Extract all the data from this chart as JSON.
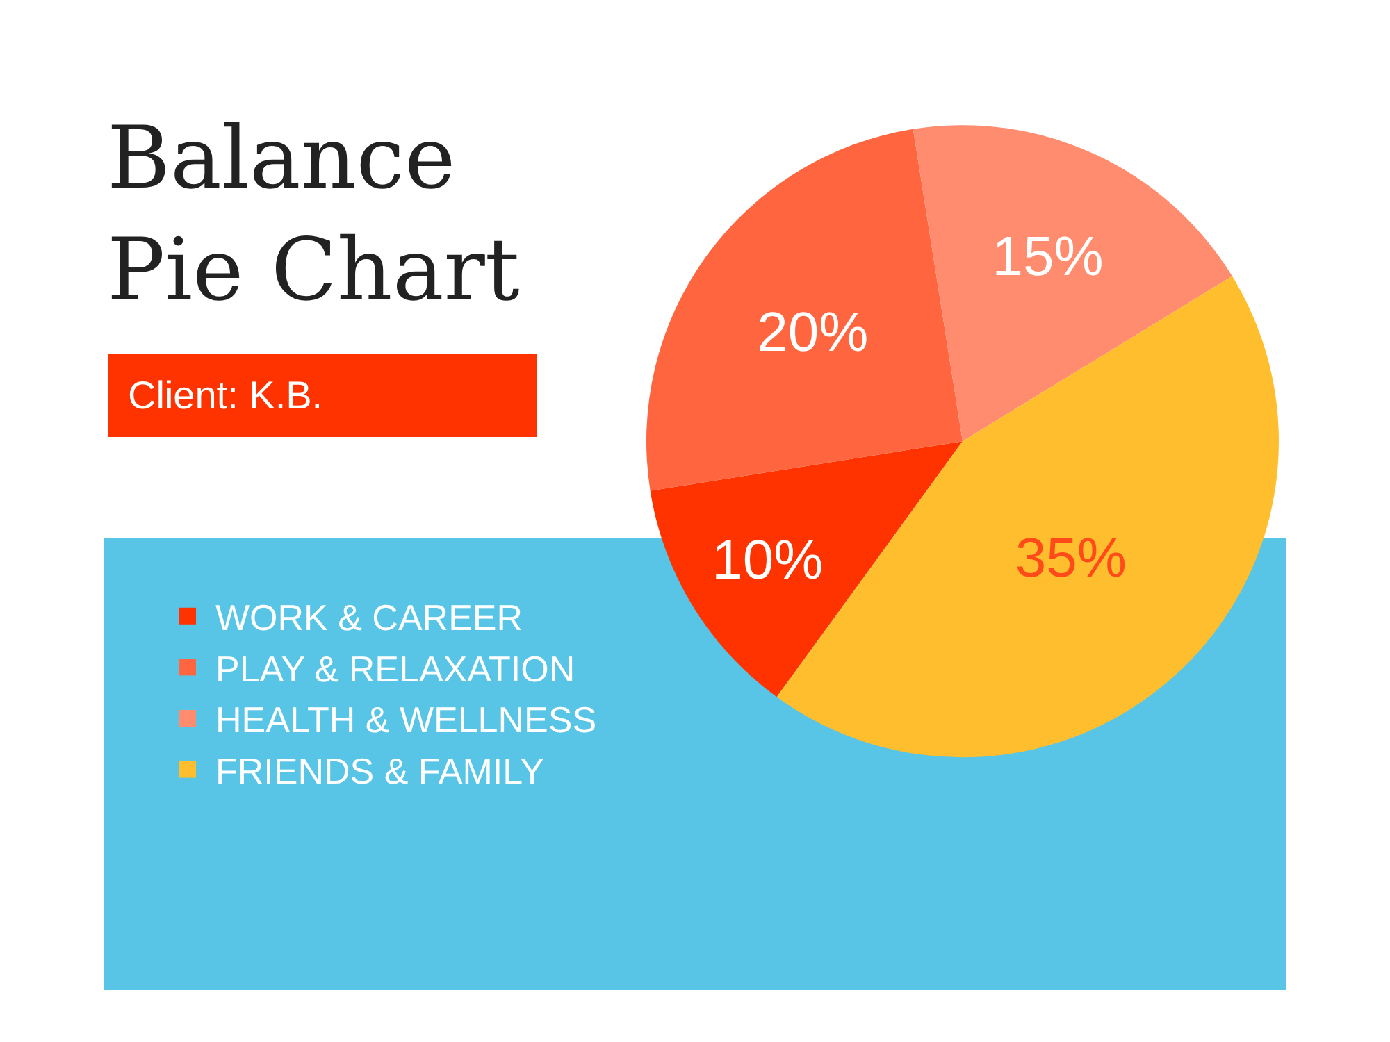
{
  "chart_data": {
    "type": "pie",
    "title": "Balance\nPie Chart",
    "subtitle": "Client: K.B.",
    "categories": [
      "WORK & CAREER",
      "PLAY & RELAXATION",
      "HEALTH & WELLNESS",
      "FRIENDS & FAMILY"
    ],
    "values": [
      10,
      20,
      15,
      35
    ],
    "colors": [
      "#ff3300",
      "#ff6640",
      "#ff8c6e",
      "#ffbe2e"
    ],
    "value_labels": [
      "10%",
      "20%",
      "15%",
      "35%"
    ],
    "legend": "bottom left"
  }
}
